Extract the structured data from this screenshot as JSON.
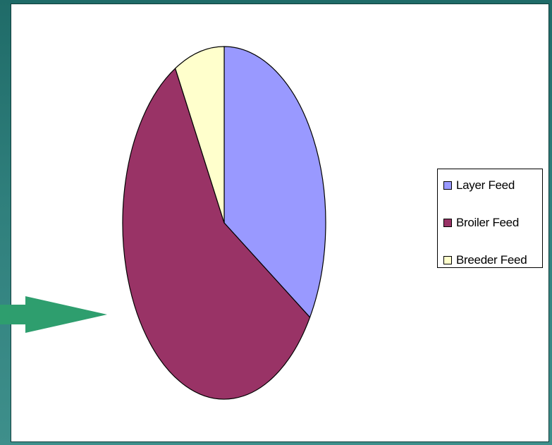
{
  "chart_data": {
    "type": "pie",
    "title": "",
    "series": [
      {
        "name": "Layer Feed",
        "value": 34,
        "color": "#9999ff"
      },
      {
        "name": "Broiler Feed",
        "value": 58,
        "color": "#993366"
      },
      {
        "name": "Breeder Feed",
        "value": 8,
        "color": "#ffffcc"
      }
    ],
    "legend": {
      "position": "right",
      "items": [
        "Layer Feed",
        "Broiler Feed",
        "Breeder Feed"
      ]
    },
    "data_labels": false
  },
  "decorations": {
    "arrow_color": "#2e9e6e",
    "arrow_icon": "right-arrow-icon",
    "background_color": "#2f7f7c"
  }
}
